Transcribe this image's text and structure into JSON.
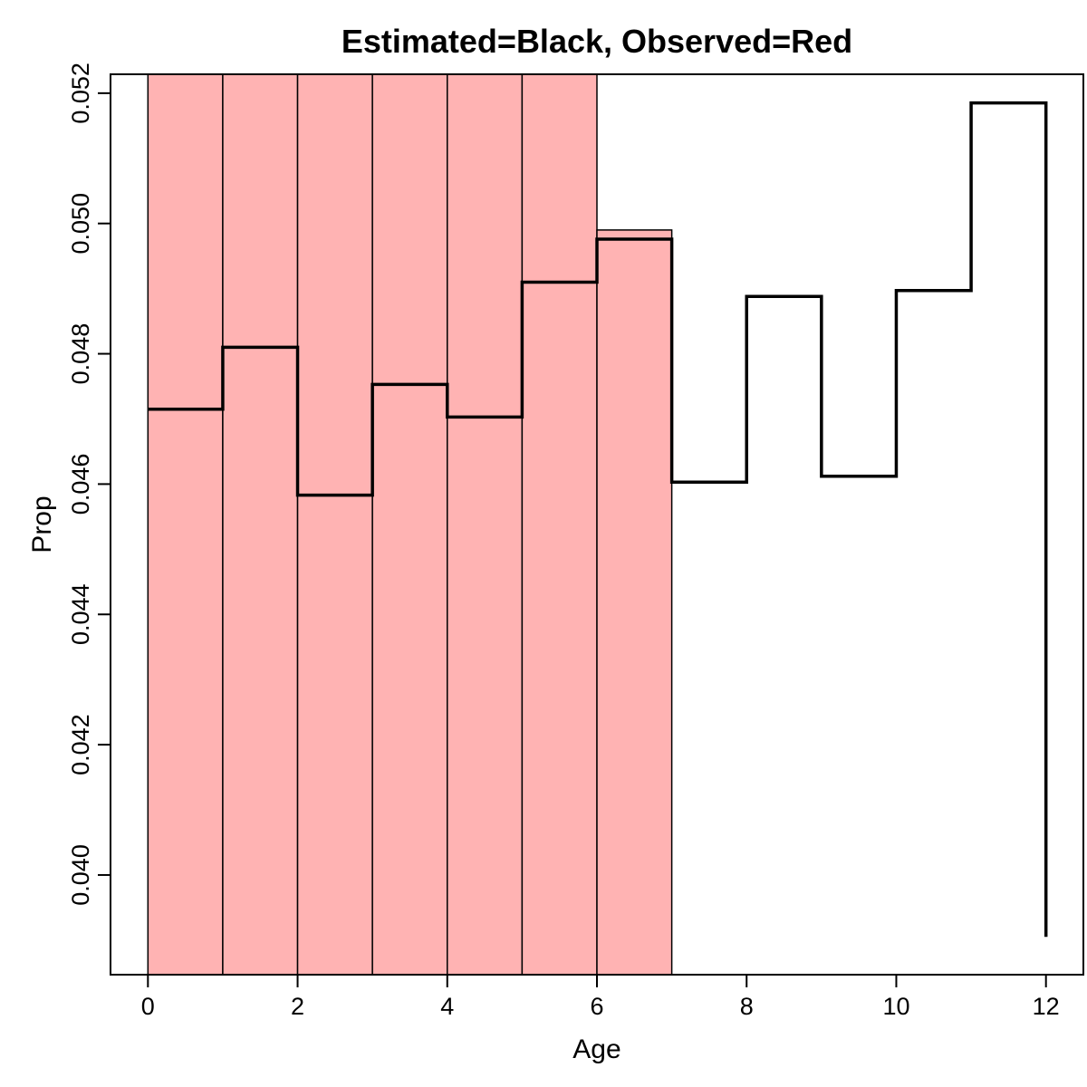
{
  "chart_data": {
    "type": "bar",
    "title": "Estimated=Black, Observed=Red",
    "xlabel": "Age",
    "ylabel": "Prop",
    "xlim": [
      -0.5,
      12.5
    ],
    "ylim": [
      0.03847,
      0.05229
    ],
    "x_ticks": [
      0,
      2,
      4,
      6,
      8,
      10,
      12
    ],
    "y_ticks": [
      "0.040",
      "0.042",
      "0.044",
      "0.046",
      "0.048",
      "0.050",
      "0.052"
    ],
    "grid": false,
    "observed": {
      "color": "#FFB3B3",
      "bars": [
        {
          "age": 0,
          "value": 0.053
        },
        {
          "age": 1,
          "value": 0.053
        },
        {
          "age": 2,
          "value": 0.053
        },
        {
          "age": 3,
          "value": 0.053
        },
        {
          "age": 4,
          "value": 0.053
        },
        {
          "age": 5,
          "value": 0.053
        },
        {
          "age": 6,
          "value": 0.0499
        }
      ]
    },
    "estimated": {
      "color": "#000000",
      "steps": [
        {
          "age": 0,
          "value": 0.04715
        },
        {
          "age": 1,
          "value": 0.0481
        },
        {
          "age": 2,
          "value": 0.04583
        },
        {
          "age": 3,
          "value": 0.04753
        },
        {
          "age": 4,
          "value": 0.04703
        },
        {
          "age": 5,
          "value": 0.0491
        },
        {
          "age": 6,
          "value": 0.04976
        },
        {
          "age": 7,
          "value": 0.04603
        },
        {
          "age": 8,
          "value": 0.04888
        },
        {
          "age": 9,
          "value": 0.04612
        },
        {
          "age": 10,
          "value": 0.04897
        },
        {
          "age": 11,
          "value": 0.05185
        }
      ],
      "end": {
        "age": 12,
        "value": 0.03905
      }
    }
  }
}
